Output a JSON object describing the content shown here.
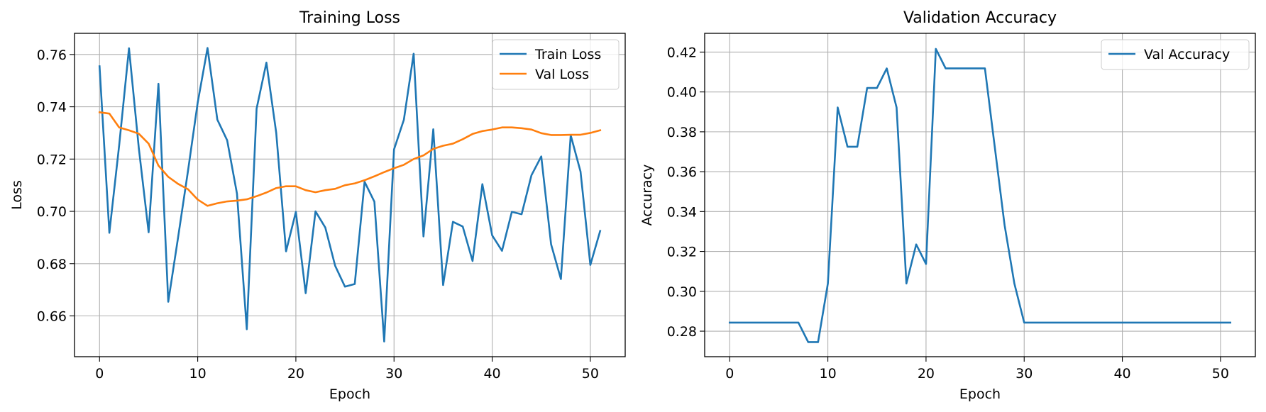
{
  "chart_data": [
    {
      "type": "line",
      "title": "Training Loss",
      "xlabel": "Epoch",
      "ylabel": "Loss",
      "xlim": [
        -2.55,
        53.55
      ],
      "ylim": [
        0.6444,
        0.7681
      ],
      "xticks": [
        0,
        10,
        20,
        30,
        40,
        50
      ],
      "yticks": [
        0.66,
        0.68,
        0.7,
        0.72,
        0.74,
        0.76
      ],
      "xtick_labels": [
        "0",
        "10",
        "20",
        "30",
        "40",
        "50"
      ],
      "ytick_labels": [
        "0.66",
        "0.68",
        "0.70",
        "0.72",
        "0.74",
        "0.76"
      ],
      "grid": true,
      "legend": "top-right",
      "x": [
        0,
        1,
        2,
        3,
        4,
        5,
        6,
        7,
        8,
        9,
        10,
        11,
        12,
        13,
        14,
        15,
        16,
        17,
        18,
        19,
        20,
        21,
        22,
        23,
        24,
        25,
        26,
        27,
        28,
        29,
        30,
        31,
        32,
        33,
        34,
        35,
        36,
        37,
        38,
        39,
        40,
        41,
        42,
        43,
        44,
        45,
        46,
        47,
        48,
        49,
        50,
        51
      ],
      "series": [
        {
          "name": "Train Loss",
          "color": "#1f77b4",
          "values": [
            0.7555,
            0.6918,
            0.7253,
            0.7624,
            0.7242,
            0.692,
            0.7488,
            0.6654,
            0.69,
            0.7152,
            0.7416,
            0.7625,
            0.7351,
            0.7272,
            0.7068,
            0.6549,
            0.7393,
            0.7569,
            0.73,
            0.6847,
            0.6998,
            0.6687,
            0.7,
            0.6938,
            0.6792,
            0.6712,
            0.6722,
            0.7113,
            0.7037,
            0.6502,
            0.7237,
            0.735,
            0.7603,
            0.6904,
            0.7314,
            0.6718,
            0.696,
            0.6942,
            0.681,
            0.7104,
            0.6908,
            0.6849,
            0.6998,
            0.6989,
            0.7138,
            0.721,
            0.6874,
            0.6741,
            0.7291,
            0.7152,
            0.6795,
            0.6925
          ]
        },
        {
          "name": "Val Loss",
          "color": "#ff7f0e",
          "values": [
            0.7379,
            0.7374,
            0.7321,
            0.731,
            0.7297,
            0.7259,
            0.7175,
            0.7132,
            0.7105,
            0.7085,
            0.7045,
            0.7021,
            0.7031,
            0.7038,
            0.7041,
            0.7046,
            0.7058,
            0.7072,
            0.7089,
            0.7096,
            0.7096,
            0.7081,
            0.7073,
            0.7081,
            0.7086,
            0.71,
            0.7107,
            0.7119,
            0.7134,
            0.715,
            0.7165,
            0.7178,
            0.72,
            0.7214,
            0.7239,
            0.7251,
            0.7259,
            0.7276,
            0.7296,
            0.7307,
            0.7313,
            0.7321,
            0.7321,
            0.7318,
            0.7313,
            0.7299,
            0.7292,
            0.7292,
            0.7293,
            0.7293,
            0.73,
            0.731
          ]
        }
      ]
    },
    {
      "type": "line",
      "title": "Validation Accuracy",
      "xlabel": "Epoch",
      "ylabel": "Accuracy",
      "xlim": [
        -2.55,
        53.55
      ],
      "ylim": [
        0.2672,
        0.4294
      ],
      "xticks": [
        0,
        10,
        20,
        30,
        40,
        50
      ],
      "yticks": [
        0.28,
        0.3,
        0.32,
        0.34,
        0.36,
        0.38,
        0.4,
        0.42
      ],
      "xtick_labels": [
        "0",
        "10",
        "20",
        "30",
        "40",
        "50"
      ],
      "ytick_labels": [
        "0.28",
        "0.30",
        "0.32",
        "0.34",
        "0.36",
        "0.38",
        "0.40",
        "0.42"
      ],
      "grid": true,
      "legend": "top-right",
      "x": [
        0,
        1,
        2,
        3,
        4,
        5,
        6,
        7,
        8,
        9,
        10,
        11,
        12,
        13,
        14,
        15,
        16,
        17,
        18,
        19,
        20,
        21,
        22,
        23,
        24,
        25,
        26,
        27,
        28,
        29,
        30,
        31,
        32,
        33,
        34,
        35,
        36,
        37,
        38,
        39,
        40,
        41,
        42,
        43,
        44,
        45,
        46,
        47,
        48,
        49,
        50,
        51
      ],
      "series": [
        {
          "name": "Val Accuracy",
          "color": "#1f77b4",
          "values": [
            0.2843,
            0.2843,
            0.2843,
            0.2843,
            0.2843,
            0.2843,
            0.2843,
            0.2843,
            0.2745,
            0.2745,
            0.3039,
            0.3922,
            0.3725,
            0.3725,
            0.402,
            0.402,
            0.4118,
            0.3922,
            0.3039,
            0.3235,
            0.3137,
            0.4216,
            0.4118,
            0.4118,
            0.4118,
            0.4118,
            0.4118,
            0.3725,
            0.3333,
            0.3039,
            0.2843,
            0.2843,
            0.2843,
            0.2843,
            0.2843,
            0.2843,
            0.2843,
            0.2843,
            0.2843,
            0.2843,
            0.2843,
            0.2843,
            0.2843,
            0.2843,
            0.2843,
            0.2843,
            0.2843,
            0.2843,
            0.2843,
            0.2843,
            0.2843,
            0.2843
          ]
        }
      ]
    }
  ]
}
